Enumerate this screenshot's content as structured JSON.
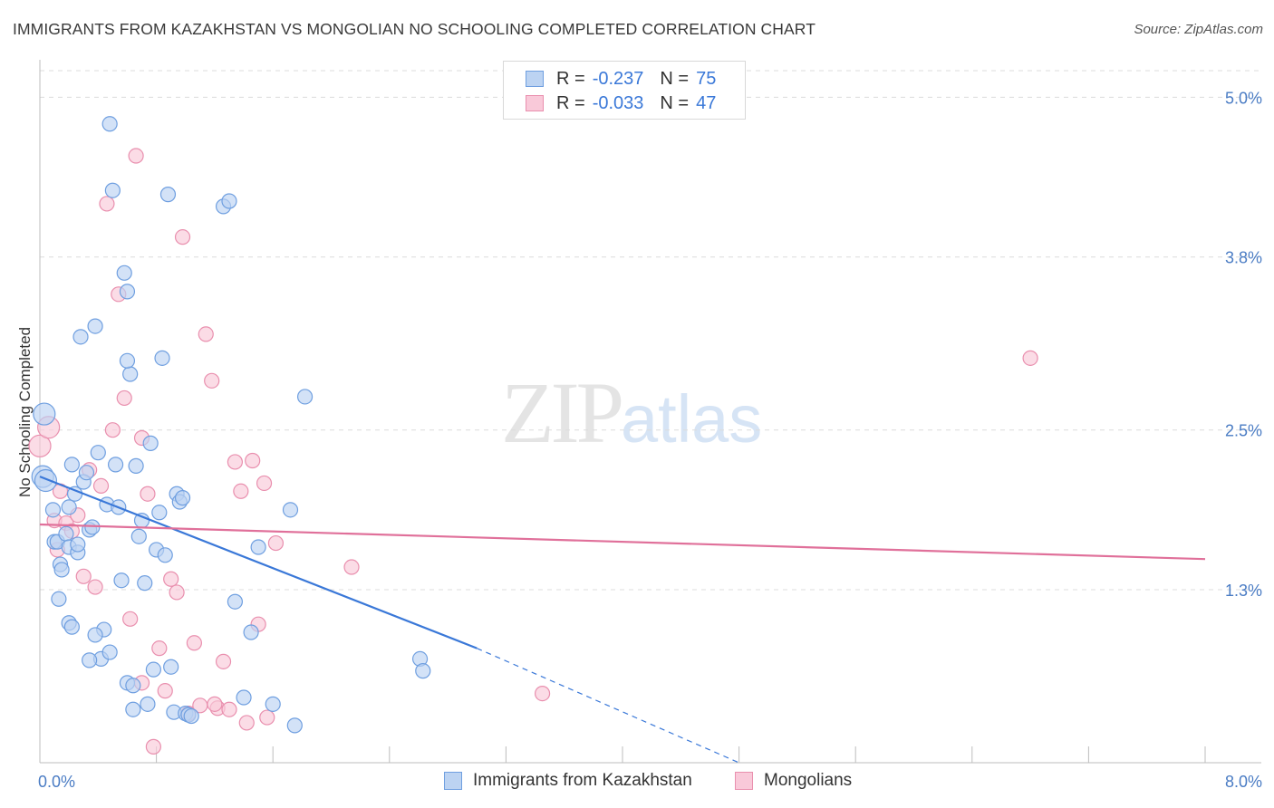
{
  "title": "IMMIGRANTS FROM KAZAKHSTAN VS MONGOLIAN NO SCHOOLING COMPLETED CORRELATION CHART",
  "source": "Source: ZipAtlas.com",
  "watermark": {
    "zip": "ZIP",
    "atlas": "atlas"
  },
  "legend": {
    "rows": [
      {
        "r_label": "R =",
        "r_value": "-0.237",
        "n_label": "N =",
        "n_value": "75",
        "fill": "#bcd3f2",
        "stroke": "#6f9fe0"
      },
      {
        "r_label": "R =",
        "r_value": "-0.033",
        "n_label": "N =",
        "n_value": "47",
        "fill": "#f9c9d9",
        "stroke": "#e98fae"
      }
    ]
  },
  "bottom_legend": {
    "kaz": "Immigrants from Kazakhstan",
    "mon": "Mongolians"
  },
  "chart_data": {
    "type": "scatter",
    "title": "IMMIGRANTS FROM KAZAKHSTAN VS MONGOLIAN NO SCHOOLING COMPLETED CORRELATION CHART",
    "xlabel": "",
    "ylabel": "No Schooling Completed",
    "xlim": [
      0,
      8
    ],
    "ylim": [
      0,
      5.2
    ],
    "x_tick_labels": [
      "0.0%",
      "8.0%"
    ],
    "y_ticks": [
      1.3,
      2.5,
      3.8,
      5.0
    ],
    "y_tick_labels": [
      "1.3%",
      "2.5%",
      "3.8%",
      "5.0%"
    ],
    "grid": true,
    "series": [
      {
        "name": "Immigrants from Kazakhstan",
        "color": "#6f9fe0",
        "fill": "#bcd3f2",
        "trend": {
          "x": [
            0,
            3.0
          ],
          "y": [
            2.15,
            0.86
          ],
          "dashed_to": [
            4.8,
            0.0
          ]
        },
        "points": [
          [
            0.03,
            2.62
          ],
          [
            0.02,
            2.15
          ],
          [
            0.04,
            2.12
          ],
          [
            0.09,
            1.9
          ],
          [
            0.1,
            1.66
          ],
          [
            0.12,
            1.66
          ],
          [
            0.14,
            1.49
          ],
          [
            0.13,
            1.23
          ],
          [
            0.15,
            1.45
          ],
          [
            0.18,
            1.72
          ],
          [
            0.2,
            1.62
          ],
          [
            0.22,
            2.24
          ],
          [
            0.24,
            2.02
          ],
          [
            0.26,
            1.58
          ],
          [
            0.28,
            3.2
          ],
          [
            0.3,
            2.11
          ],
          [
            0.32,
            2.18
          ],
          [
            0.34,
            1.75
          ],
          [
            0.36,
            1.77
          ],
          [
            0.38,
            3.28
          ],
          [
            0.4,
            2.33
          ],
          [
            0.42,
            0.78
          ],
          [
            0.44,
            1.0
          ],
          [
            0.46,
            1.94
          ],
          [
            0.48,
            4.8
          ],
          [
            0.5,
            4.3
          ],
          [
            0.52,
            2.24
          ],
          [
            0.54,
            1.92
          ],
          [
            0.56,
            1.37
          ],
          [
            0.58,
            3.68
          ],
          [
            0.6,
            3.54
          ],
          [
            0.62,
            2.92
          ],
          [
            0.64,
            0.4
          ],
          [
            0.66,
            2.23
          ],
          [
            0.68,
            1.7
          ],
          [
            0.7,
            1.82
          ],
          [
            0.72,
            1.35
          ],
          [
            0.74,
            0.44
          ],
          [
            0.76,
            2.4
          ],
          [
            0.78,
            0.7
          ],
          [
            0.8,
            1.6
          ],
          [
            0.82,
            1.88
          ],
          [
            0.84,
            3.04
          ],
          [
            0.86,
            1.56
          ],
          [
            0.88,
            4.27
          ],
          [
            0.9,
            0.72
          ],
          [
            0.92,
            0.38
          ],
          [
            0.94,
            2.02
          ],
          [
            0.96,
            1.96
          ],
          [
            0.98,
            1.99
          ],
          [
            1.0,
            0.37
          ],
          [
            1.02,
            0.36
          ],
          [
            1.04,
            0.35
          ],
          [
            1.26,
            4.18
          ],
          [
            1.3,
            4.22
          ],
          [
            1.34,
            1.21
          ],
          [
            1.4,
            0.49
          ],
          [
            1.45,
            0.98
          ],
          [
            1.5,
            1.62
          ],
          [
            1.6,
            0.44
          ],
          [
            1.72,
            1.9
          ],
          [
            1.75,
            0.28
          ],
          [
            1.82,
            2.75
          ],
          [
            0.2,
            1.05
          ],
          [
            0.22,
            1.02
          ],
          [
            0.26,
            1.64
          ],
          [
            0.34,
            0.77
          ],
          [
            0.38,
            0.96
          ],
          [
            0.48,
            0.83
          ],
          [
            0.6,
            0.6
          ],
          [
            0.64,
            0.58
          ],
          [
            2.61,
            0.78
          ],
          [
            2.63,
            0.69
          ],
          [
            0.6,
            3.02
          ],
          [
            0.2,
            1.92
          ]
        ]
      },
      {
        "name": "Mongolians",
        "color": "#e98fae",
        "fill": "#f9c9d9",
        "trend": {
          "x": [
            0,
            8.0
          ],
          "y": [
            1.79,
            1.53
          ]
        },
        "points": [
          [
            0.0,
            2.38
          ],
          [
            0.06,
            2.52
          ],
          [
            0.1,
            1.82
          ],
          [
            0.12,
            1.6
          ],
          [
            0.14,
            2.04
          ],
          [
            0.18,
            1.8
          ],
          [
            0.22,
            1.74
          ],
          [
            0.26,
            1.86
          ],
          [
            0.3,
            1.4
          ],
          [
            0.34,
            2.2
          ],
          [
            0.38,
            1.32
          ],
          [
            0.42,
            2.08
          ],
          [
            0.46,
            4.2
          ],
          [
            0.5,
            2.5
          ],
          [
            0.54,
            3.52
          ],
          [
            0.58,
            2.74
          ],
          [
            0.62,
            1.08
          ],
          [
            0.66,
            4.56
          ],
          [
            0.7,
            2.44
          ],
          [
            0.74,
            2.02
          ],
          [
            0.78,
            0.12
          ],
          [
            0.82,
            0.86
          ],
          [
            0.86,
            0.54
          ],
          [
            0.9,
            1.38
          ],
          [
            0.94,
            1.28
          ],
          [
            0.98,
            3.95
          ],
          [
            1.02,
            0.37
          ],
          [
            1.06,
            0.9
          ],
          [
            1.1,
            0.43
          ],
          [
            1.14,
            3.22
          ],
          [
            1.18,
            2.87
          ],
          [
            1.22,
            0.41
          ],
          [
            1.26,
            0.76
          ],
          [
            1.3,
            0.4
          ],
          [
            1.34,
            2.26
          ],
          [
            1.38,
            2.04
          ],
          [
            1.42,
            0.3
          ],
          [
            1.46,
            2.27
          ],
          [
            1.5,
            1.04
          ],
          [
            1.54,
            2.1
          ],
          [
            1.56,
            0.34
          ],
          [
            1.62,
            1.65
          ],
          [
            2.14,
            1.47
          ],
          [
            3.45,
            0.52
          ],
          [
            6.8,
            3.04
          ],
          [
            1.2,
            0.44
          ],
          [
            0.7,
            0.6
          ]
        ]
      }
    ]
  }
}
